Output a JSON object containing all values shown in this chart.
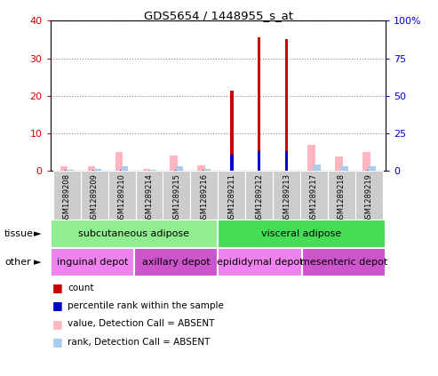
{
  "title": "GDS5654 / 1448955_s_at",
  "samples": [
    "GSM1289208",
    "GSM1289209",
    "GSM1289210",
    "GSM1289214",
    "GSM1289215",
    "GSM1289216",
    "GSM1289211",
    "GSM1289212",
    "GSM1289213",
    "GSM1289217",
    "GSM1289218",
    "GSM1289219"
  ],
  "count_values": [
    0.4,
    0.4,
    0.4,
    0.2,
    0.4,
    0.3,
    21.5,
    35.5,
    35.0,
    0.4,
    0.4,
    0.4
  ],
  "rank_values": [
    0.4,
    0.4,
    0.4,
    0.2,
    0.4,
    0.3,
    11.0,
    13.5,
    13.5,
    0.4,
    0.4,
    0.4
  ],
  "absent_value": [
    1.2,
    1.2,
    5.0,
    0.5,
    4.2,
    1.5,
    0.0,
    0.0,
    0.0,
    7.0,
    4.0,
    5.0
  ],
  "absent_rank": [
    1.0,
    1.2,
    3.5,
    0.8,
    3.2,
    1.2,
    0.0,
    0.0,
    0.0,
    4.5,
    3.2,
    3.5
  ],
  "tissue_groups": [
    {
      "label": "subcutaneous adipose",
      "start": 0,
      "end": 6,
      "color": "#90EE90"
    },
    {
      "label": "visceral adipose",
      "start": 6,
      "end": 12,
      "color": "#44DD55"
    }
  ],
  "other_groups": [
    {
      "label": "inguinal depot",
      "start": 0,
      "end": 3,
      "color": "#EE82EE"
    },
    {
      "label": "axillary depot",
      "start": 3,
      "end": 6,
      "color": "#CC55CC"
    },
    {
      "label": "epididymal depot",
      "start": 6,
      "end": 9,
      "color": "#EE82EE"
    },
    {
      "label": "mesenteric depot",
      "start": 9,
      "end": 12,
      "color": "#CC55CC"
    }
  ],
  "ylim_left": [
    0,
    40
  ],
  "ylim_right": [
    0,
    100
  ],
  "yticks_left": [
    0,
    10,
    20,
    30,
    40
  ],
  "yticks_right": [
    0,
    25,
    50,
    75,
    100
  ],
  "yticklabels_right": [
    "0",
    "25",
    "50",
    "75",
    "100%"
  ],
  "left_color": "#CC0000",
  "right_color": "#0000CC",
  "legend_items": [
    {
      "color": "#CC0000",
      "label": "count"
    },
    {
      "color": "#0000CC",
      "label": "percentile rank within the sample"
    },
    {
      "color": "#FFB6C1",
      "label": "value, Detection Call = ABSENT"
    },
    {
      "color": "#AACCEE",
      "label": "rank, Detection Call = ABSENT"
    }
  ]
}
